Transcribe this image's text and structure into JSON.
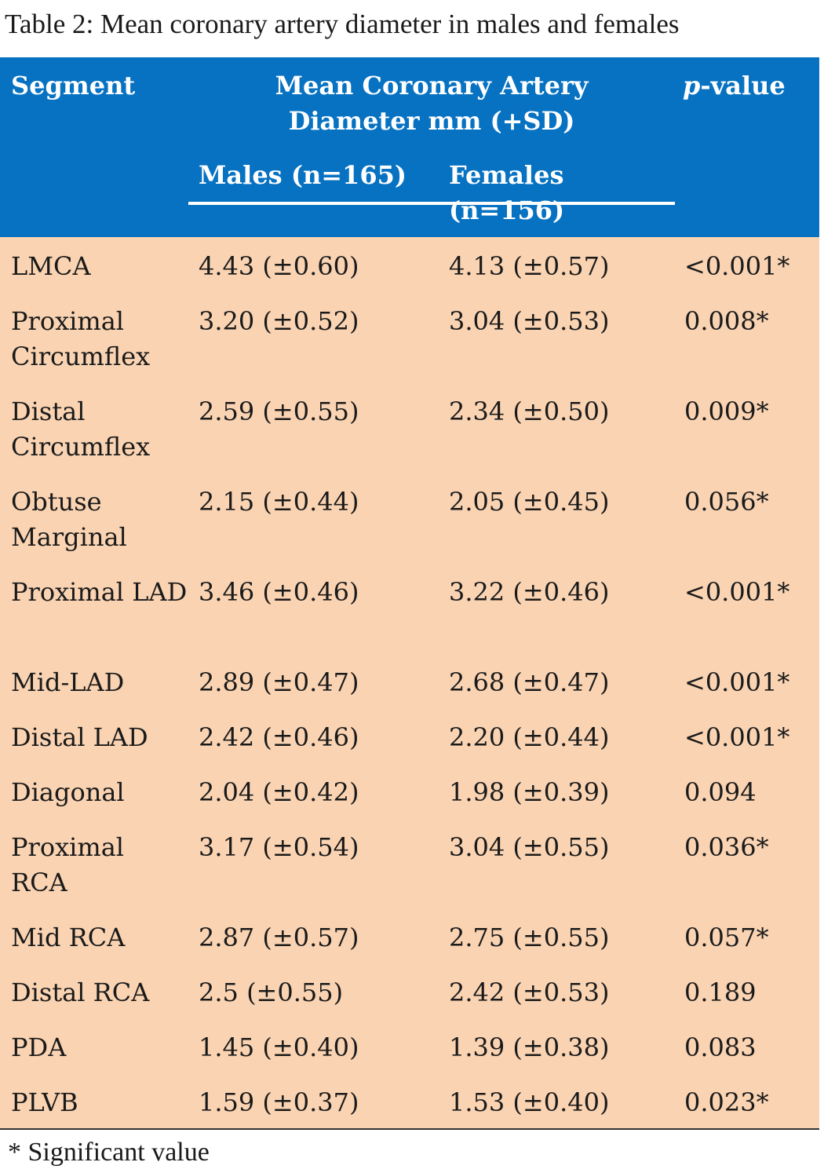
{
  "caption": "Table 2: Mean coronary artery diameter in males and females",
  "header": {
    "segment": "Segment",
    "mean_line1": "Mean Coronary Artery",
    "mean_line2": "Diameter mm (+SD)",
    "p_italic": "p",
    "p_rest": "-value",
    "males": "Males (n=165)",
    "females": "Females (n=156)"
  },
  "rows": [
    {
      "segment": "LMCA",
      "males": "4.43 (±0.60)",
      "females": "4.13 (±0.57)",
      "p": "<0.001*"
    },
    {
      "segment": "Proximal Circumflex",
      "males": "3.20 (±0.52)",
      "females": "3.04 (±0.53)",
      "p": "0.008*"
    },
    {
      "segment": "Distal Circumflex",
      "males": "2.59 (±0.55)",
      "females": "2.34 (±0.50)",
      "p": "0.009*"
    },
    {
      "segment": "Obtuse Marginal",
      "males": "2.15 (±0.44)",
      "females": "2.05 (±0.45)",
      "p": "0.056*"
    },
    {
      "segment": "Proximal LAD",
      "males": "3.46 (±0.46)",
      "females": "3.22 (±0.46)",
      "p": "<0.001*"
    },
    {
      "segment": "Mid-LAD",
      "males": "2.89 (±0.47)",
      "females": "2.68 (±0.47)",
      "p": "<0.001*"
    },
    {
      "segment": "Distal LAD",
      "males": "2.42 (±0.46)",
      "females": "2.20 (±0.44)",
      "p": "<0.001*"
    },
    {
      "segment": "Diagonal",
      "males": "2.04 (±0.42)",
      "females": "1.98 (±0.39)",
      "p": "0.094"
    },
    {
      "segment": "Proximal RCA",
      "males": "3.17 (±0.54)",
      "females": "3.04 (±0.55)",
      "p": "0.036*"
    },
    {
      "segment": "Mid RCA",
      "males": "2.87 (±0.57)",
      "females": "2.75 (±0.55)",
      "p": "0.057*"
    },
    {
      "segment": "Distal RCA",
      "males": "2.5 (±0.55)",
      "females": "2.42 (±0.53)",
      "p": "0.189"
    },
    {
      "segment": "PDA",
      "males": "1.45 (±0.40)",
      "females": "1.39 (±0.38)",
      "p": "0.083"
    },
    {
      "segment": "PLVB",
      "males": "1.59 (±0.37)",
      "females": "1.53 (±0.40)",
      "p": "0.023*"
    }
  ],
  "footnote": "* Significant value",
  "colors": {
    "header_bg": "#0772c2",
    "body_bg": "#f9d3b2"
  }
}
